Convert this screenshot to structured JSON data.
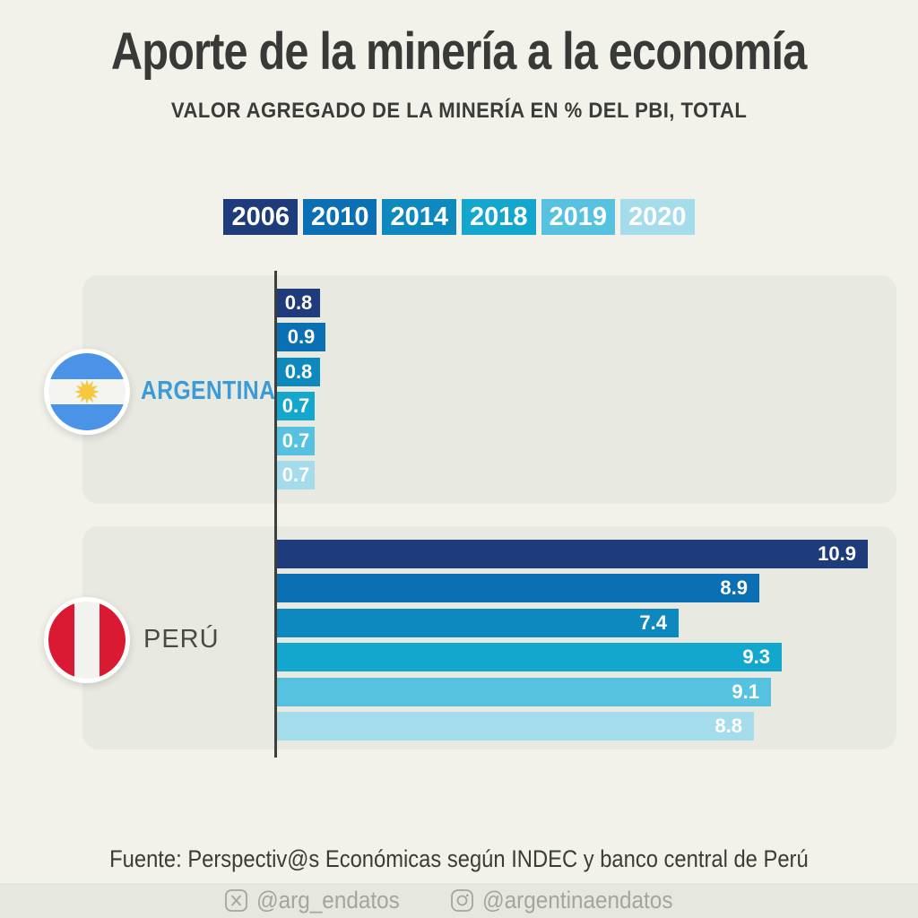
{
  "title": "Aporte de la minería a la economía",
  "subtitle": "VALOR AGREGADO DE LA MINERÍA EN % DEL PBI, TOTAL",
  "chart_data": {
    "type": "bar",
    "orientation": "horizontal",
    "title": "Aporte de la minería a la economía",
    "subtitle": "VALOR AGREGADO DE LA MINERÍA EN % DEL PBI, TOTAL",
    "unit": "% del PBI",
    "xlim": [
      0,
      11.5
    ],
    "grid": false,
    "legend_position": "top-center",
    "years": [
      "2006",
      "2010",
      "2014",
      "2018",
      "2019",
      "2020"
    ],
    "year_colors": [
      "#1E3B7B",
      "#0B70B3",
      "#0D89BF",
      "#14A7CE",
      "#57C2DF",
      "#A4DCEC"
    ],
    "countries": [
      {
        "name": "ARGENTINA",
        "values": [
          0.8,
          0.9,
          0.8,
          0.7,
          0.7,
          0.7
        ],
        "name_color": "#3B9BD8",
        "label_align": "center"
      },
      {
        "name": "PERÚ",
        "values": [
          10.9,
          8.9,
          7.4,
          9.3,
          9.1,
          8.8
        ],
        "name_color": "#4A4A45",
        "label_align": "right"
      }
    ]
  },
  "flags": {
    "argentina": {
      "blue": "#4A93E6",
      "white": "#F4F5F1",
      "sun": "#F6C83F"
    },
    "peru": {
      "red": "#D91A32",
      "white": "#F2F2EE"
    }
  },
  "footer": {
    "source": "Fuente: Perspectiv@s Económicas según INDEC y banco central de Perú",
    "social": [
      {
        "network": "X (Twitter)",
        "handle": "@arg_endatos"
      },
      {
        "network": "Instagram",
        "handle": "@argentinaendatos"
      }
    ]
  }
}
